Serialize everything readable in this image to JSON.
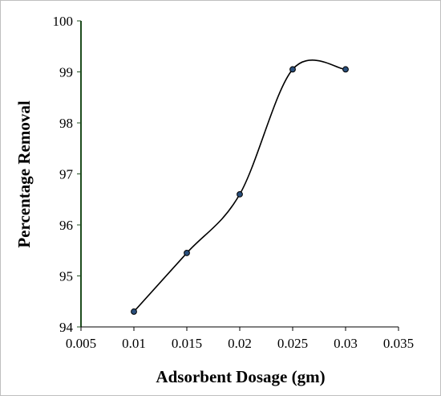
{
  "chart_data": {
    "type": "line",
    "xlabel": "Adsorbent Dosage (gm)",
    "ylabel": "Percentage Removal",
    "xlim": [
      0.005,
      0.035
    ],
    "ylim": [
      94,
      100
    ],
    "x_ticks": [
      "0.005",
      "0.01",
      "0.015",
      "0.02",
      "0.025",
      "0.03",
      "0.035"
    ],
    "y_ticks": [
      "94",
      "95",
      "96",
      "97",
      "98",
      "99",
      "100"
    ],
    "series": [
      {
        "x": [
          0.01,
          0.015,
          0.02,
          0.025,
          0.03
        ],
        "y": [
          94.3,
          95.45,
          96.6,
          99.05,
          99.05
        ]
      }
    ],
    "grid": false,
    "smooth_line": true,
    "colors": {
      "y_axis": "#1f4d1f",
      "x_axis": "#000000",
      "line": "#000000",
      "marker_fill": "#2a4f7c",
      "marker_stroke": "#000000"
    }
  }
}
